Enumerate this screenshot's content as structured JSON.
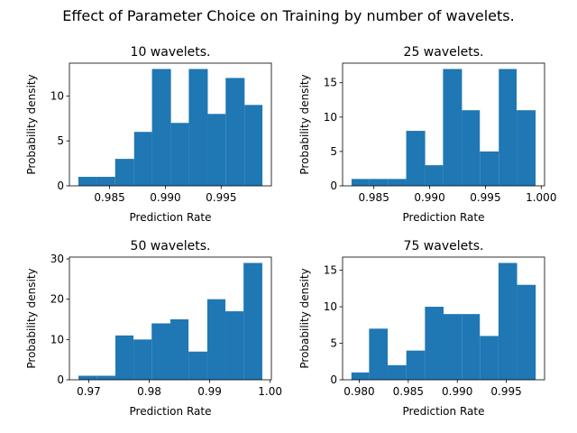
{
  "figure": {
    "suptitle": "Effect of Parameter Choice on Training by number of wavelets."
  },
  "chart_data": [
    {
      "type": "bar",
      "title": "10 wavelets.",
      "xlabel": "Prediction Rate",
      "ylabel": "Probability density",
      "color": "#1f77b4",
      "bin_edges": [
        0.9822,
        0.9839,
        0.9855,
        0.9872,
        0.9888,
        0.9905,
        0.9921,
        0.9938,
        0.9954,
        0.9971,
        0.9987
      ],
      "values": [
        1,
        1,
        3,
        6,
        13,
        7,
        13,
        8,
        12,
        9
      ],
      "xlim": [
        0.9814,
        0.9995
      ],
      "ylim": [
        0,
        13.65
      ],
      "xticks": [
        0.985,
        0.99,
        0.995
      ],
      "xtick_labels": [
        "0.985",
        "0.990",
        "0.995"
      ],
      "yticks": [
        0,
        5,
        10
      ],
      "ytick_labels": [
        "0",
        "5",
        "10"
      ]
    },
    {
      "type": "bar",
      "title": "25 wavelets.",
      "xlabel": "Prediction Rate",
      "ylabel": "Probability density",
      "color": "#1f77b4",
      "bin_edges": [
        0.983,
        0.9846,
        0.9863,
        0.9879,
        0.9896,
        0.9912,
        0.9929,
        0.9945,
        0.9962,
        0.9978,
        0.9995
      ],
      "values": [
        1,
        1,
        1,
        8,
        3,
        17,
        11,
        5,
        17,
        11
      ],
      "xlim": [
        0.9822,
        1.0003
      ],
      "ylim": [
        0,
        17.85
      ],
      "xticks": [
        0.985,
        0.99,
        0.995,
        1.0
      ],
      "xtick_labels": [
        "0.985",
        "0.990",
        "0.995",
        "1.000"
      ],
      "yticks": [
        0,
        5,
        10,
        15
      ],
      "ytick_labels": [
        "0",
        "5",
        "10",
        "15"
      ]
    },
    {
      "type": "bar",
      "title": "50 wavelets.",
      "xlabel": "Prediction Rate",
      "ylabel": "Probability density",
      "color": "#1f77b4",
      "bin_edges": [
        0.9683,
        0.9713,
        0.9744,
        0.9774,
        0.9804,
        0.9835,
        0.9865,
        0.9896,
        0.9926,
        0.9956,
        0.9987
      ],
      "values": [
        1,
        1,
        11,
        10,
        14,
        15,
        7,
        20,
        17,
        29
      ],
      "xlim": [
        0.9668,
        1.0002
      ],
      "ylim": [
        0,
        30.45
      ],
      "xticks": [
        0.97,
        0.98,
        0.99,
        1.0
      ],
      "xtick_labels": [
        "0.97",
        "0.98",
        "0.99",
        "1.00"
      ],
      "yticks": [
        0,
        10,
        20,
        30
      ],
      "ytick_labels": [
        "0",
        "10",
        "20",
        "30"
      ]
    },
    {
      "type": "bar",
      "title": "75 wavelets.",
      "xlabel": "Prediction Rate",
      "ylabel": "Probability density",
      "color": "#1f77b4",
      "bin_edges": [
        0.9792,
        0.981,
        0.9829,
        0.9848,
        0.9867,
        0.9886,
        0.9905,
        0.9923,
        0.9942,
        0.9961,
        0.998
      ],
      "values": [
        1,
        7,
        2,
        4,
        10,
        9,
        9,
        6,
        16,
        13
      ],
      "xlim": [
        0.9783,
        0.9989
      ],
      "ylim": [
        0,
        16.8
      ],
      "xticks": [
        0.98,
        0.985,
        0.99,
        0.995
      ],
      "xtick_labels": [
        "0.980",
        "0.985",
        "0.990",
        "0.995"
      ],
      "yticks": [
        0,
        5,
        10,
        15
      ],
      "ytick_labels": [
        "0",
        "5",
        "10",
        "15"
      ]
    }
  ]
}
